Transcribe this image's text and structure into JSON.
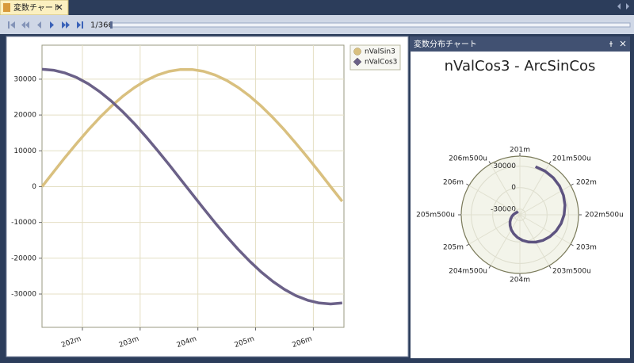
{
  "ui": {
    "tab_title": "変数チャート",
    "counter": "1/366",
    "panel_title": "変数分布チャート"
  },
  "chart_data": [
    {
      "type": "line",
      "x": [
        201.3,
        201.5,
        201.7,
        201.9,
        202.1,
        202.3,
        202.5,
        202.7,
        202.9,
        203.1,
        203.3,
        203.5,
        203.7,
        203.9,
        204.1,
        204.3,
        204.5,
        204.7,
        204.9,
        205.1,
        205.3,
        205.5,
        205.7,
        205.9,
        206.1,
        206.3,
        206.5
      ],
      "series": [
        {
          "name": "nValSin3",
          "color": "#d9c07f",
          "marker": "circle",
          "values": [
            0,
            4107,
            8149,
            12062,
            15785,
            19260,
            22430,
            25247,
            27666,
            29649,
            31163,
            32187,
            32702,
            32702,
            32187,
            31163,
            29649,
            27666,
            25247,
            22430,
            19260,
            15785,
            12062,
            8149,
            4107,
            0,
            -4107
          ]
        },
        {
          "name": "nValCos3",
          "color": "#6b6188",
          "marker": "diamond",
          "values": [
            32767,
            32508,
            31738,
            30466,
            28714,
            26509,
            23886,
            20887,
            17558,
            13952,
            10126,
            6140,
            2057,
            -2057,
            -6140,
            -10126,
            -13952,
            -17558,
            -20887,
            -23886,
            -26509,
            -28714,
            -30466,
            -31738,
            -32508,
            -32767,
            -32508
          ]
        }
      ],
      "xlim": [
        201.3,
        206.53
      ],
      "xticks": [
        {
          "value": 202,
          "label": "202m"
        },
        {
          "value": 203,
          "label": "203m"
        },
        {
          "value": 204,
          "label": "204m"
        },
        {
          "value": 205,
          "label": "205m"
        },
        {
          "value": 206,
          "label": "206m"
        }
      ],
      "ylim": [
        -39300,
        39500
      ],
      "yticks": [
        -30000,
        -20000,
        -10000,
        0,
        10000,
        20000,
        30000
      ],
      "grid": true,
      "legend": "top-right"
    },
    {
      "type": "polar",
      "title": "nValCos3 - ArcSinCos",
      "x": [
        201.3,
        201.5,
        201.7,
        201.9,
        202.1,
        202.3,
        202.5,
        202.7,
        202.9,
        203.1,
        203.3,
        203.5,
        203.7,
        203.9,
        204.1,
        204.3,
        204.5,
        204.7,
        204.9,
        205.1,
        205.3,
        205.5,
        205.7,
        205.9,
        206.1,
        206.3,
        206.5
      ],
      "series": [
        {
          "color": "#5d5380",
          "values": [
            32767,
            32508,
            31738,
            30466,
            28714,
            26509,
            23886,
            20887,
            17558,
            13952,
            10126,
            6140,
            2057,
            -2057,
            -6140,
            -10126,
            -13952,
            -17558,
            -20887,
            -23886,
            -26509,
            -28714,
            -30466,
            -31738,
            -32508,
            -32767,
            -32508
          ]
        }
      ],
      "xlim": [
        201,
        207
      ],
      "xticks": [
        {
          "value": 201,
          "label": "201m"
        },
        {
          "value": 201.5,
          "label": "201m500u"
        },
        {
          "value": 202,
          "label": "202m"
        },
        {
          "value": 202.5,
          "label": "202m500u"
        },
        {
          "value": 203,
          "label": "203m"
        },
        {
          "value": 203.5,
          "label": "203m500u"
        },
        {
          "value": 204,
          "label": "204m"
        },
        {
          "value": 204.5,
          "label": "204m500u"
        },
        {
          "value": 205,
          "label": "205m"
        },
        {
          "value": 205.5,
          "label": "205m500u"
        },
        {
          "value": 206,
          "label": "206m"
        },
        {
          "value": 206.5,
          "label": "206m500u"
        }
      ],
      "ylim": [
        -38000,
        44000
      ],
      "yticks": [
        -30000,
        0,
        30000
      ],
      "grid": true
    }
  ]
}
